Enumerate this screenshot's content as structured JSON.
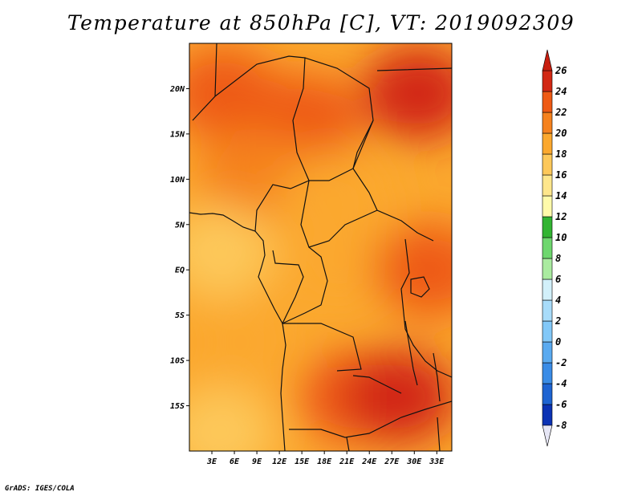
{
  "title": "Temperature at 850hPa [C], VT: 2019092309",
  "credit": "GrADS: IGES/COLA",
  "chart_data": {
    "type": "heatmap",
    "title": "Temperature at 850hPa [C], VT: 2019092309",
    "variable": "Temperature at 850hPa",
    "units": "C",
    "valid_time": "2019092309",
    "xlim": [
      0,
      35
    ],
    "ylim": [
      -20,
      25
    ],
    "x_ticks": [
      {
        "value": 3,
        "label": "3E"
      },
      {
        "value": 6,
        "label": "6E"
      },
      {
        "value": 9,
        "label": "9E"
      },
      {
        "value": 12,
        "label": "12E"
      },
      {
        "value": 15,
        "label": "15E"
      },
      {
        "value": 18,
        "label": "18E"
      },
      {
        "value": 21,
        "label": "21E"
      },
      {
        "value": 24,
        "label": "24E"
      },
      {
        "value": 27,
        "label": "27E"
      },
      {
        "value": 30,
        "label": "30E"
      },
      {
        "value": 33,
        "label": "33E"
      }
    ],
    "y_ticks": [
      {
        "value": 20,
        "label": "20N"
      },
      {
        "value": 15,
        "label": "15N"
      },
      {
        "value": 10,
        "label": "10N"
      },
      {
        "value": 5,
        "label": "5N"
      },
      {
        "value": 0,
        "label": "EQ"
      },
      {
        "value": -5,
        "label": "5S"
      },
      {
        "value": -10,
        "label": "10S"
      },
      {
        "value": -15,
        "label": "15S"
      }
    ],
    "colorbar": {
      "levels": [
        -8,
        -6,
        -4,
        -2,
        0,
        2,
        4,
        6,
        8,
        10,
        12,
        14,
        16,
        18,
        20,
        22,
        24,
        26
      ],
      "labels": [
        "-8",
        "-6",
        "-4",
        "-2",
        "0",
        "2",
        "4",
        "6",
        "8",
        "10",
        "12",
        "14",
        "16",
        "18",
        "20",
        "22",
        "24",
        "26"
      ],
      "colors": [
        "#0a0a78",
        "#0b32b4",
        "#1e64d2",
        "#3a8ce6",
        "#5aaaf0",
        "#82c8f8",
        "#a8dcfa",
        "#d2f0fa",
        "#aaeba0",
        "#6ed76e",
        "#32b432",
        "#fffaaa",
        "#fee68c",
        "#fdc85a",
        "#fba82e",
        "#f5821e",
        "#ee5a14",
        "#d22814"
      ],
      "under_color": "#e6e6f5",
      "over_color": "#c81e0f"
    },
    "field_regions": [
      {
        "lon": 4.5,
        "lat": 19.5,
        "value": 23
      },
      {
        "lon": 15.5,
        "lat": 16.5,
        "value": 23
      },
      {
        "lon": 30.5,
        "lat": 19.5,
        "value": 25
      },
      {
        "lon": 8.5,
        "lat": 10.5,
        "value": 21
      },
      {
        "lon": 19.5,
        "lat": 8,
        "value": 19
      },
      {
        "lon": 4,
        "lat": 2,
        "value": 17
      },
      {
        "lon": 20,
        "lat": 0,
        "value": 18
      },
      {
        "lon": 32,
        "lat": 0,
        "value": 22
      },
      {
        "lon": 7,
        "lat": -8,
        "value": 19
      },
      {
        "lon": 22,
        "lat": -14,
        "value": 23
      },
      {
        "lon": 28,
        "lat": -14,
        "value": 24
      },
      {
        "lon": 4,
        "lat": -18,
        "value": 17
      }
    ]
  }
}
